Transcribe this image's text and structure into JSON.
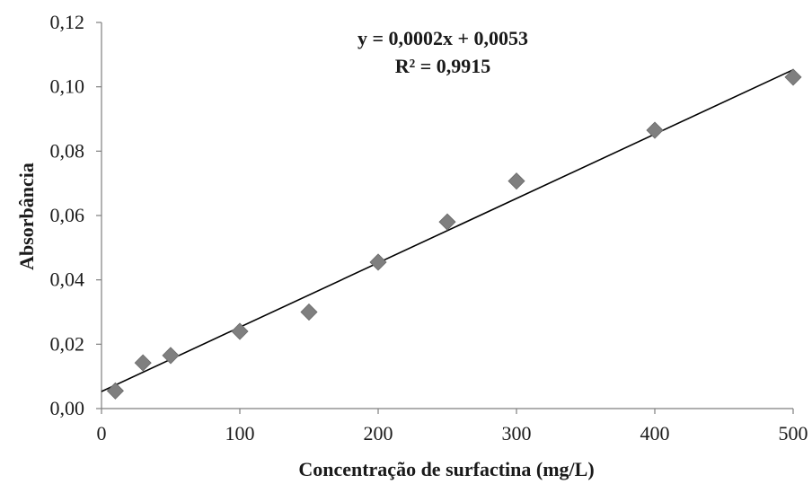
{
  "chart_data": {
    "type": "scatter",
    "xlabel": "Concentração de surfactina (mg/L)",
    "ylabel": "Absorbância",
    "xlim": [
      0,
      500
    ],
    "ylim": [
      0,
      0.12
    ],
    "x_ticks": [
      "0",
      "100",
      "200",
      "300",
      "400",
      "500"
    ],
    "y_ticks": [
      "0,00",
      "0,02",
      "0,04",
      "0,06",
      "0,08",
      "0,10",
      "0,12"
    ],
    "grid": false,
    "legend": "none",
    "series": [
      {
        "x": [
          10,
          30,
          50,
          100,
          150,
          200,
          250,
          300,
          400,
          500
        ],
        "y": [
          0.0055,
          0.0142,
          0.0165,
          0.024,
          0.03,
          0.0455,
          0.058,
          0.0707,
          0.0865,
          0.103
        ],
        "marker": "diamond",
        "color": "#7f7f7f"
      }
    ],
    "trendline": {
      "type": "linear",
      "slope": 0.0002,
      "intercept": 0.0053,
      "color": "#000000",
      "equation_label": "y = 0,0002x + 0,0053",
      "r2_label": "R² = 0,9915"
    }
  }
}
